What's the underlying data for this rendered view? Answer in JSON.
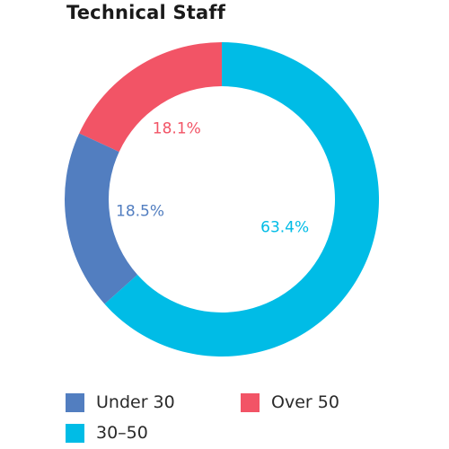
{
  "chart_data": {
    "type": "pie",
    "title": "Technical Staff",
    "categories": [
      "Over 50",
      "30–50",
      "Under 30"
    ],
    "values": [
      18.1,
      63.4,
      18.5
    ],
    "value_labels": [
      "18.1%",
      "63.4%",
      "18.5%"
    ],
    "unit": "%",
    "colors": [
      "#f25466",
      "#00bce6",
      "#527ec0"
    ],
    "donut": true,
    "legend": {
      "placement": "bottom",
      "items": [
        {
          "label": "Under 30",
          "color": "#527ec0"
        },
        {
          "label": "Over 50",
          "color": "#f25466"
        },
        {
          "label": "30–50",
          "color": "#00bce6"
        }
      ]
    }
  }
}
